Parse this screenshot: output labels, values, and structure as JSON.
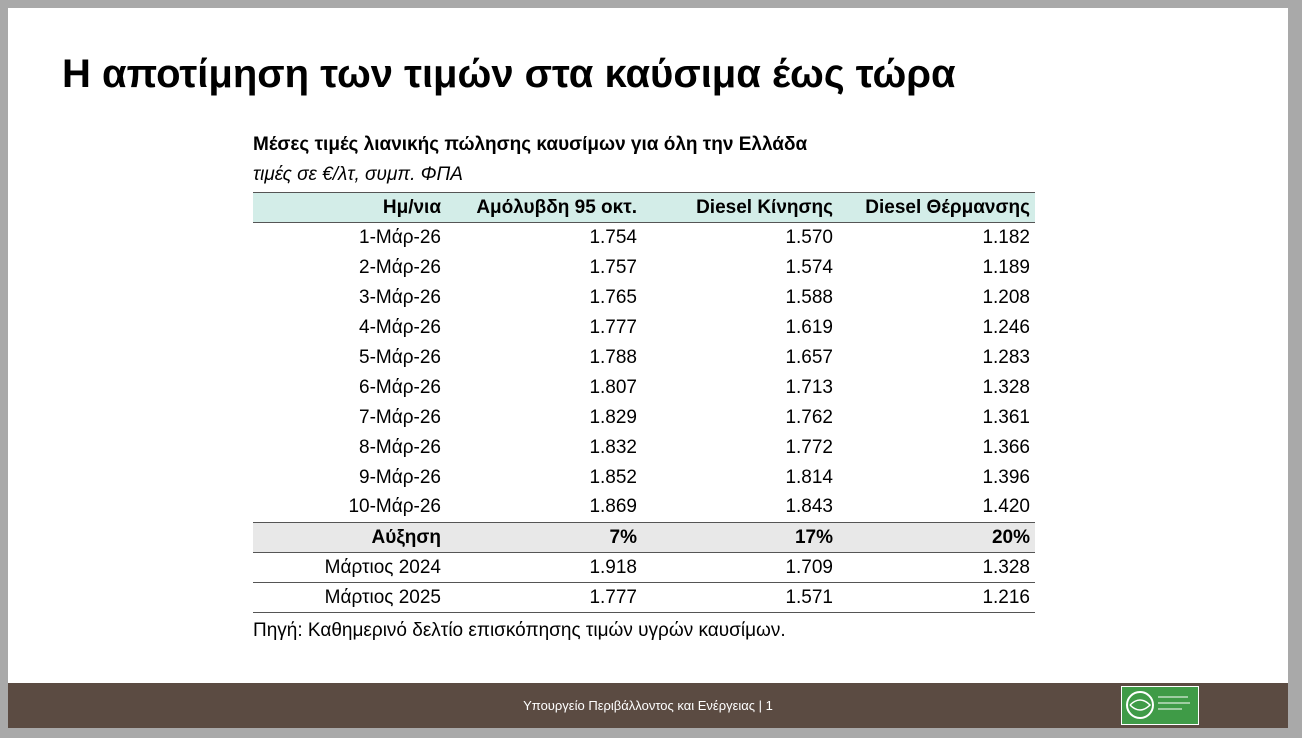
{
  "title": "Η αποτίμηση των τιμών στα καύσιμα έως τώρα",
  "table": {
    "caption": "Μέσες τιμές λιανικής πώλησης καυσίμων για όλη την Ελλάδα",
    "subtitle": "τιμές σε €/λτ, συμπ. ΦΠΑ",
    "header": [
      "Ημ/νια",
      "Αμόλυβδη 95 οκτ.",
      "Diesel Κίνησης",
      "Diesel Θέρμανσης"
    ],
    "rows": [
      [
        "1-Μάρ-26",
        "1.754",
        "1.570",
        "1.182"
      ],
      [
        "2-Μάρ-26",
        "1.757",
        "1.574",
        "1.189"
      ],
      [
        "3-Μάρ-26",
        "1.765",
        "1.588",
        "1.208"
      ],
      [
        "4-Μάρ-26",
        "1.777",
        "1.619",
        "1.246"
      ],
      [
        "5-Μάρ-26",
        "1.788",
        "1.657",
        "1.283"
      ],
      [
        "6-Μάρ-26",
        "1.807",
        "1.713",
        "1.328"
      ],
      [
        "7-Μάρ-26",
        "1.829",
        "1.762",
        "1.361"
      ],
      [
        "8-Μάρ-26",
        "1.832",
        "1.772",
        "1.366"
      ],
      [
        "9-Μάρ-26",
        "1.852",
        "1.814",
        "1.396"
      ],
      [
        "10-Μάρ-26",
        "1.869",
        "1.843",
        "1.420"
      ]
    ],
    "change_row": [
      "Αύξηση",
      "7%",
      "17%",
      "20%"
    ],
    "reference_rows": [
      [
        "Μάρτιος 2024",
        "1.918",
        "1.709",
        "1.328"
      ],
      [
        "Μάρτιος 2025",
        "1.777",
        "1.571",
        "1.216"
      ]
    ],
    "source": "Πηγή: Καθημερινό δελτίο επισκόπησης τιμών υγρών καυσίμων."
  },
  "footer": {
    "text": "Υπουργείο Περιβάλλοντος και Ενέργειας | 1"
  }
}
